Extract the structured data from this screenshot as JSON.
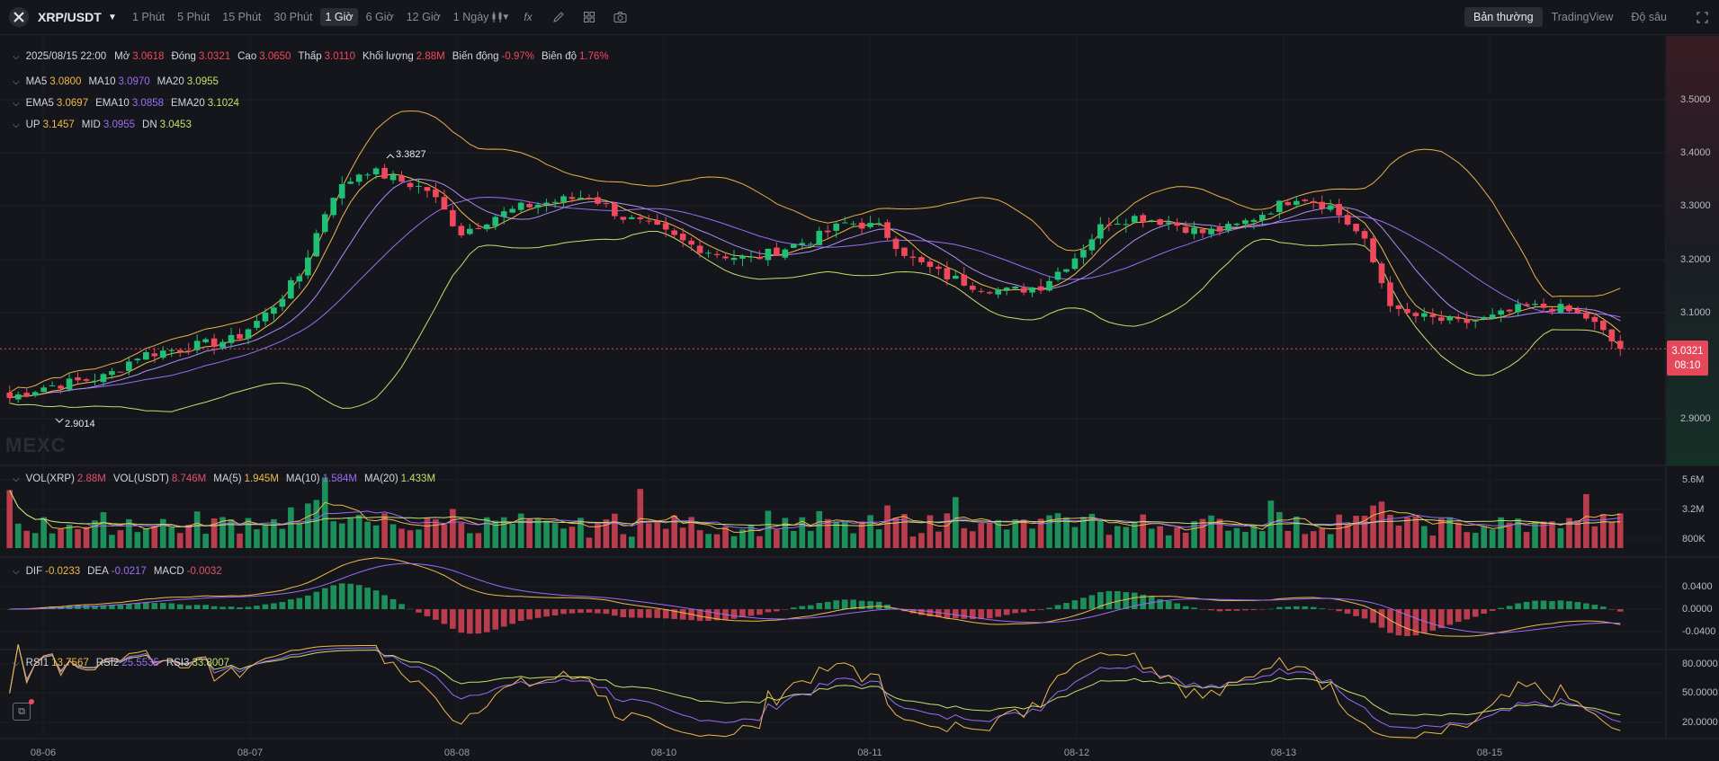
{
  "toolbar": {
    "pair": "XRP/USDT",
    "intervals": [
      "1 Phút",
      "5 Phút",
      "15 Phút",
      "30 Phút",
      "1 Giờ",
      "6 Giờ",
      "12 Giờ",
      "1 Ngày"
    ],
    "active_interval": "1 Giờ",
    "modes": [
      "Bản thường",
      "TradingView",
      "Độ sâu"
    ],
    "active_mode": "Bản thường",
    "tool_icons": [
      "candle-style-icon",
      "indicator-fx-icon",
      "draw-pencil-icon",
      "layout-grid-icon",
      "camera-icon"
    ]
  },
  "ohlc": {
    "datetime": "2025/08/15 22:00",
    "open_label": "Mở",
    "open": "3.0618",
    "close_label": "Đóng",
    "close": "3.0321",
    "high_label": "Cao",
    "high": "3.0650",
    "low_label": "Thấp",
    "low": "3.0110",
    "volume_label": "Khối lượng",
    "volume": "2.88M",
    "change_label": "Biến động",
    "change": "-0.97%",
    "amplitude_label": "Biên độ",
    "amplitude": "1.76%"
  },
  "ma": {
    "ma5_label": "MA5",
    "ma5": "3.0800",
    "ma10_label": "MA10",
    "ma10": "3.0970",
    "ma20_label": "MA20",
    "ma20": "3.0955"
  },
  "ema": {
    "ema5_label": "EMA5",
    "ema5": "3.0697",
    "ema10_label": "EMA10",
    "ema10": "3.0858",
    "ema20_label": "EMA20",
    "ema20": "3.1024"
  },
  "boll": {
    "up_label": "UP",
    "up": "3.1457",
    "mid_label": "MID",
    "mid": "3.0955",
    "dn_label": "DN",
    "dn": "3.0453"
  },
  "vol": {
    "xrp_label": "VOL(XRP)",
    "xrp": "2.88M",
    "usdt_label": "VOL(USDT)",
    "usdt": "8.746M",
    "ma5_label": "MA(5)",
    "ma5": "1.945M",
    "ma10_label": "MA(10)",
    "ma10": "1.584M",
    "ma20_label": "MA(20)",
    "ma20": "1.433M"
  },
  "macd": {
    "dif_label": "DIF",
    "dif": "-0.0233",
    "dea_label": "DEA",
    "dea": "-0.0217",
    "macd_label": "MACD",
    "macd": "-0.0032"
  },
  "rsi": {
    "rsi1_label": "RSI1",
    "rsi1": "13.7567",
    "rsi2_label": "RSI2",
    "rsi2": "25.5535",
    "rsi3_label": "RSI3",
    "rsi3": "33.8007"
  },
  "price_tag": {
    "price": "3.0321",
    "countdown": "08:10"
  },
  "annotations": {
    "high": "3.3827",
    "low": "2.9014"
  },
  "watermark": "MEXC",
  "colors": {
    "up": "#1fbf75",
    "down": "#f0485c",
    "ma5": "#f2b84b",
    "ma10": "#9a6cf5",
    "ma20": "#c3e06a",
    "boll": "#e8b04a",
    "background": "#15161c"
  },
  "chart_data": {
    "type": "candlestick",
    "x_tick_labels": [
      "08-06",
      "08-07",
      "08-08",
      "08-10",
      "08-11",
      "08-12",
      "08-13",
      "08-15"
    ],
    "price_axis_labels": [
      "3.5000",
      "3.4000",
      "3.3000",
      "3.2000",
      "3.1000",
      "2.9000"
    ],
    "volume_axis_labels": [
      "5.6M",
      "3.2M",
      "800K"
    ],
    "macd_axis_labels": [
      "0.0400",
      "0.0000",
      "-0.0400"
    ],
    "rsi_axis_labels": [
      "80.0000",
      "50.0000",
      "20.0000"
    ],
    "close_series_approx": [
      2.94,
      2.96,
      2.97,
      2.98,
      3.02,
      3.03,
      3.04,
      3.05,
      3.1,
      3.17,
      3.32,
      3.37,
      3.35,
      3.33,
      3.25,
      3.28,
      3.3,
      3.31,
      3.32,
      3.28,
      3.26,
      3.23,
      3.21,
      3.2,
      3.22,
      3.24,
      3.27,
      3.26,
      3.2,
      3.17,
      3.15,
      3.14,
      3.15,
      3.2,
      3.27,
      3.28,
      3.27,
      3.25,
      3.26,
      3.29,
      3.32,
      3.3,
      3.24,
      3.1,
      3.09,
      3.08,
      3.09,
      3.11,
      3.11,
      3.09,
      3.03
    ],
    "ylim": [
      2.85,
      3.58
    ]
  }
}
